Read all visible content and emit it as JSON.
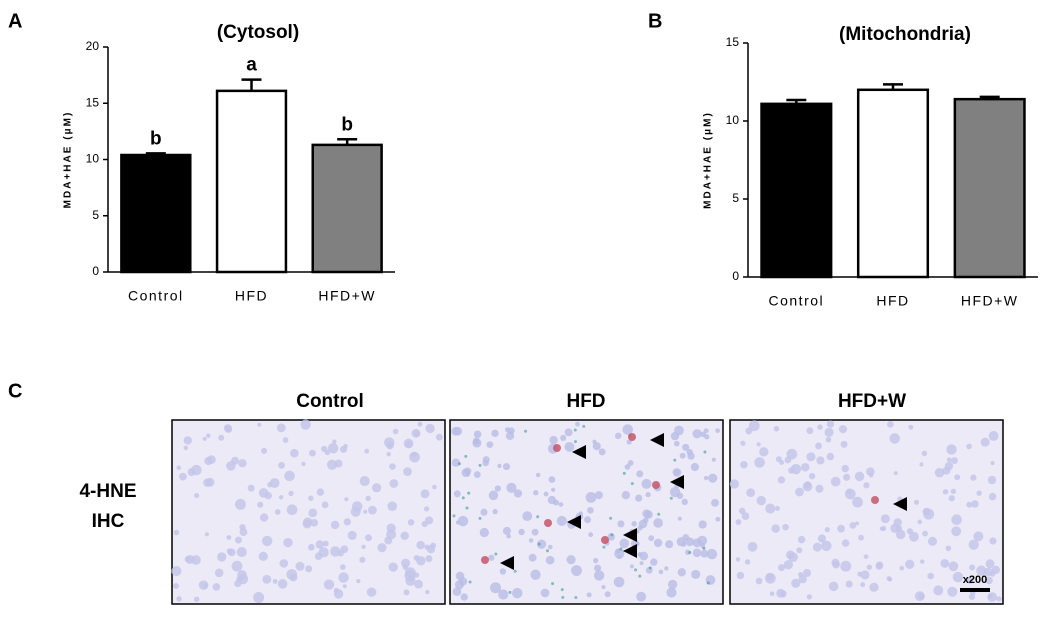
{
  "panel_labels": [
    "A",
    "B",
    "C"
  ],
  "chart_data": [
    {
      "type": "bar",
      "title": "(Cytosol)",
      "y_label": "MDA+HAE (μM)",
      "categories": [
        "Control",
        "HFD",
        "HFD+W"
      ],
      "values": [
        10.4,
        16.1,
        11.3
      ],
      "errors": [
        0.15,
        1.0,
        0.5
      ],
      "annotations": [
        "b",
        "a",
        "b"
      ],
      "colors": [
        "#000000",
        "#ffffff",
        "#808080"
      ],
      "ylim": [
        0,
        20
      ],
      "yticks": [
        0,
        5,
        10,
        15,
        20
      ]
    },
    {
      "type": "bar",
      "title": "(Mitochondria)",
      "y_label": "MDA+HAE (μM)",
      "categories": [
        "Control",
        "HFD",
        "HFD+W"
      ],
      "values": [
        11.1,
        12.0,
        11.4
      ],
      "errors": [
        0.25,
        0.35,
        0.15
      ],
      "colors": [
        "#000000",
        "#ffffff",
        "#808080"
      ],
      "ylim": [
        0,
        15
      ],
      "yticks": [
        0,
        5,
        10,
        15
      ]
    }
  ],
  "micrographs": {
    "columns": [
      "Control",
      "HFD",
      "HFD+W"
    ],
    "row_label": [
      "4-HNE",
      "IHC"
    ],
    "magnification": "x200"
  }
}
